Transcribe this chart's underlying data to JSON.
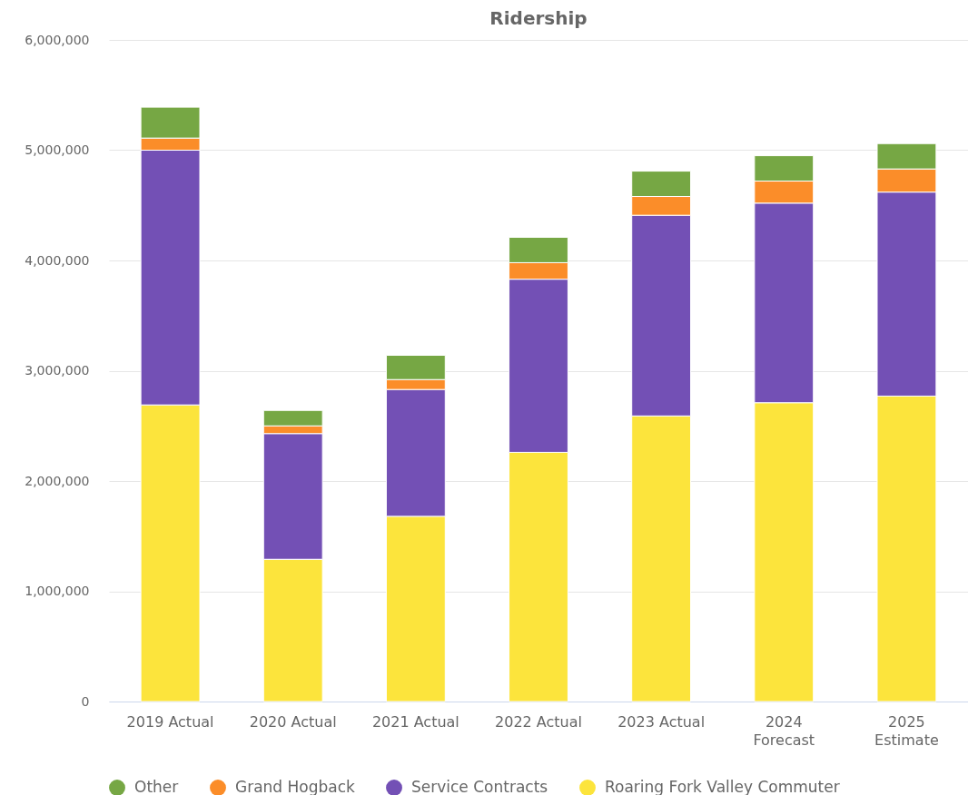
{
  "chart_data": {
    "type": "bar",
    "title": "Ridership",
    "categories": [
      "2019 Actual",
      "2020 Actual",
      "2021 Actual",
      "2022 Actual",
      "2023 Actual",
      "2024 Forecast",
      "2025 Estimate"
    ],
    "stacked": true,
    "series": [
      {
        "name": "Roaring Fork Valley Commuter",
        "color": "#fce43c",
        "values": [
          2690000,
          1290000,
          1680000,
          2260000,
          2590000,
          2710000,
          2770000
        ]
      },
      {
        "name": "Service Contracts",
        "color": "#7350b5",
        "values": [
          2310000,
          1140000,
          1150000,
          1570000,
          1820000,
          1810000,
          1850000
        ]
      },
      {
        "name": "Grand Hogback",
        "color": "#fb8d29",
        "values": [
          110000,
          70000,
          90000,
          150000,
          170000,
          200000,
          210000
        ]
      },
      {
        "name": "Other",
        "color": "#76a744",
        "values": [
          280000,
          140000,
          220000,
          230000,
          230000,
          230000,
          230000
        ]
      }
    ],
    "ylim": [
      0,
      6000000
    ],
    "yticks": [
      0,
      {
        "value": 1000000,
        "label": "1,000,000"
      },
      {
        "value": 2000000,
        "label": "2,000,000"
      },
      {
        "value": 3000000,
        "label": "3,000,000"
      },
      {
        "value": 4000000,
        "label": "4,000,000"
      },
      {
        "value": 5000000,
        "label": "5,000,000"
      },
      {
        "value": 6000000,
        "label": "6,000,000"
      }
    ],
    "grid": "y",
    "legend": "bottom"
  }
}
